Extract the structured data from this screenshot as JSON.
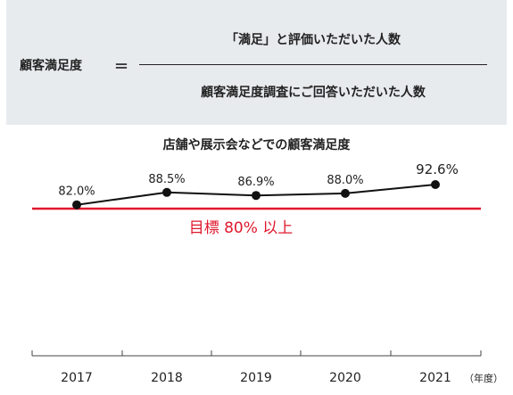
{
  "formula": {
    "label": "顧客満足度",
    "equals": "＝",
    "numerator": "「満足」と評価いただいた人数",
    "denominator": "顧客満足度調査にご回答いただいた人数"
  },
  "chart_data": {
    "type": "line",
    "title": "店舗や展示会などでの顧客満足度",
    "categories": [
      "2017",
      "2018",
      "2019",
      "2020",
      "2021"
    ],
    "values": [
      82.0,
      88.5,
      86.9,
      88.0,
      92.6
    ],
    "value_labels": [
      "82.0%",
      "88.5%",
      "86.9%",
      "88.0%",
      "92.6%"
    ],
    "x_unit_label": "（年度）",
    "target": {
      "value": 80,
      "label": "目標 80% 以上",
      "color": "#e0182d"
    },
    "line_color": "#111111",
    "grid": false
  }
}
